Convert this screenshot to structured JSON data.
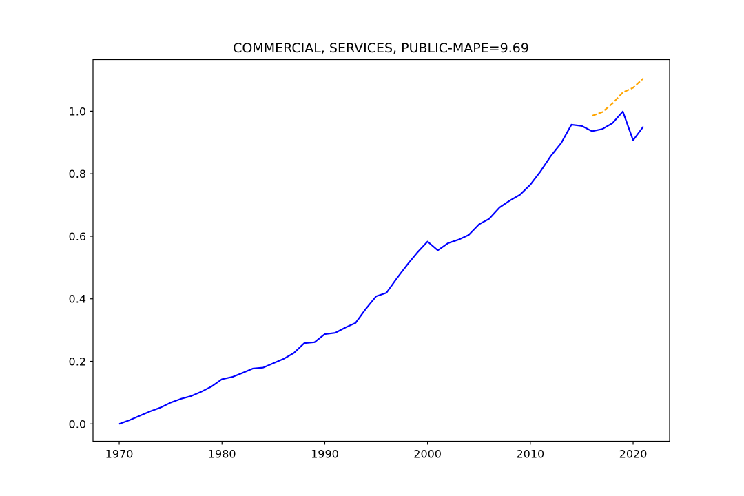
{
  "colors": {
    "background": "#ffffff",
    "axes": "#000000",
    "actual_line": "#0000ff",
    "forecast_line": "#ffa500"
  },
  "chart_data": {
    "type": "line",
    "title": "COMMERCIAL, SERVICES, PUBLIC-MAPE=9.69",
    "xlabel": "",
    "ylabel": "",
    "xlim": [
      1967.45,
      2023.55
    ],
    "ylim": [
      -0.0555,
      1.165
    ],
    "grid": false,
    "legend": "none",
    "x_ticks": [
      1970,
      1980,
      1990,
      2000,
      2010,
      2020
    ],
    "x_tick_labels": [
      "1970",
      "1980",
      "1990",
      "2000",
      "2010",
      "2020"
    ],
    "y_ticks": [
      0.0,
      0.2,
      0.4,
      0.6,
      0.8,
      1.0
    ],
    "y_tick_labels": [
      "0.0",
      "0.2",
      "0.4",
      "0.6",
      "0.8",
      "1.0"
    ],
    "series": [
      {
        "style": "solid",
        "color": "#0000ff",
        "x": [
          1970,
          1971,
          1972,
          1973,
          1974,
          1975,
          1976,
          1977,
          1978,
          1979,
          1980,
          1981,
          1982,
          1983,
          1984,
          1985,
          1986,
          1987,
          1988,
          1989,
          1990,
          1991,
          1992,
          1993,
          1994,
          1995,
          1996,
          1997,
          1998,
          1999,
          2000,
          2001,
          2002,
          2003,
          2004,
          2005,
          2006,
          2007,
          2008,
          2009,
          2010,
          2011,
          2012,
          2013,
          2014,
          2015,
          2016,
          2017,
          2018,
          2019,
          2020,
          2021
        ],
        "values": [
          0.0,
          0.012,
          0.026,
          0.04,
          0.052,
          0.068,
          0.08,
          0.089,
          0.103,
          0.12,
          0.143,
          0.15,
          0.163,
          0.177,
          0.18,
          0.194,
          0.208,
          0.227,
          0.258,
          0.261,
          0.287,
          0.291,
          0.308,
          0.323,
          0.368,
          0.408,
          0.419,
          0.465,
          0.508,
          0.548,
          0.583,
          0.555,
          0.578,
          0.589,
          0.604,
          0.638,
          0.656,
          0.692,
          0.714,
          0.733,
          0.765,
          0.808,
          0.857,
          0.898,
          0.957,
          0.953,
          0.936,
          0.943,
          0.962,
          0.999,
          0.907,
          0.951
        ]
      },
      {
        "style": "dashed",
        "color": "#ffa500",
        "x": [
          2016,
          2017,
          2018,
          2019,
          2020,
          2021
        ],
        "values": [
          0.985,
          0.997,
          1.025,
          1.06,
          1.075,
          1.105
        ]
      }
    ]
  }
}
